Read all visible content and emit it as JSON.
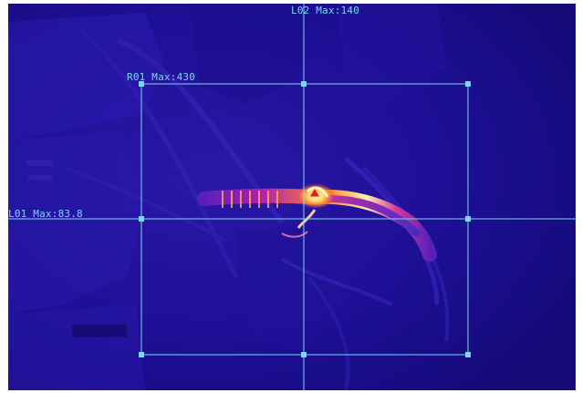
{
  "thermal": {
    "line_h_label": "L01 Max:83.8",
    "line_v_label": "L02 Max:140",
    "rect_label": "R01 Max:430",
    "hotspot_icon": "triangle-marker-icon",
    "overlay_color": "#7ad7f0"
  }
}
